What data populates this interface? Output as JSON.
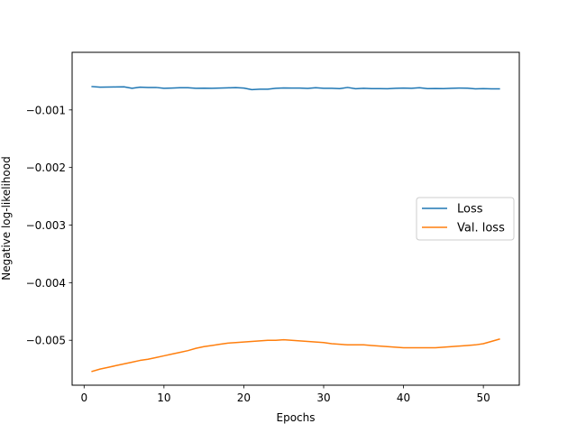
{
  "chart_data": {
    "type": "line",
    "title": "",
    "xlabel": "Epochs",
    "ylabel": "Negative log-likelihood",
    "xlim": [
      -1.5,
      54.5
    ],
    "ylim": [
      -0.00578,
      0.0
    ],
    "xticks": [
      0,
      10,
      20,
      30,
      40,
      50
    ],
    "xtick_labels": [
      "0",
      "10",
      "20",
      "30",
      "40",
      "50"
    ],
    "yticks": [
      -0.001,
      -0.002,
      -0.003,
      -0.004,
      -0.005
    ],
    "ytick_labels": [
      "−0.001",
      "−0.002",
      "−0.003",
      "−0.004",
      "−0.005"
    ],
    "grid": false,
    "legend_position": "right",
    "x": [
      1,
      2,
      3,
      4,
      5,
      6,
      7,
      8,
      9,
      10,
      11,
      12,
      13,
      14,
      15,
      16,
      17,
      18,
      19,
      20,
      21,
      22,
      23,
      24,
      25,
      26,
      27,
      28,
      29,
      30,
      31,
      32,
      33,
      34,
      35,
      36,
      37,
      38,
      39,
      40,
      41,
      42,
      43,
      44,
      45,
      46,
      47,
      48,
      49,
      50,
      51,
      52
    ],
    "series": [
      {
        "name": "Loss",
        "color": "#1f77b4",
        "values": [
          -0.000595,
          -0.000605,
          -0.000603,
          -0.000602,
          -0.0006,
          -0.000625,
          -0.000605,
          -0.00061,
          -0.00061,
          -0.000625,
          -0.00062,
          -0.000615,
          -0.000615,
          -0.000625,
          -0.000622,
          -0.000625,
          -0.00062,
          -0.000617,
          -0.000612,
          -0.00062,
          -0.000648,
          -0.00064,
          -0.00064,
          -0.000625,
          -0.000618,
          -0.00062,
          -0.00062,
          -0.000627,
          -0.000615,
          -0.000625,
          -0.000625,
          -0.00063,
          -0.00061,
          -0.000632,
          -0.000625,
          -0.00063,
          -0.00063,
          -0.000632,
          -0.000625,
          -0.00062,
          -0.000625,
          -0.000615,
          -0.00063,
          -0.000628,
          -0.00063,
          -0.000625,
          -0.00062,
          -0.000622,
          -0.000635,
          -0.00063,
          -0.000635,
          -0.000635
        ]
      },
      {
        "name": "Val. loss",
        "color": "#ff7f0e",
        "values": [
          -0.00554,
          -0.0055,
          -0.00547,
          -0.00544,
          -0.00541,
          -0.00538,
          -0.00535,
          -0.00533,
          -0.0053,
          -0.00527,
          -0.00524,
          -0.00521,
          -0.00518,
          -0.00514,
          -0.00511,
          -0.00509,
          -0.00507,
          -0.00505,
          -0.00504,
          -0.00503,
          -0.00502,
          -0.00501,
          -0.005,
          -0.005,
          -0.00499,
          -0.005,
          -0.00501,
          -0.00502,
          -0.00503,
          -0.00504,
          -0.00506,
          -0.00507,
          -0.00508,
          -0.00508,
          -0.00508,
          -0.00509,
          -0.0051,
          -0.00511,
          -0.00512,
          -0.00513,
          -0.00513,
          -0.00513,
          -0.00513,
          -0.00513,
          -0.00512,
          -0.00511,
          -0.0051,
          -0.00509,
          -0.00508,
          -0.00506,
          -0.00502,
          -0.00498
        ]
      }
    ]
  }
}
